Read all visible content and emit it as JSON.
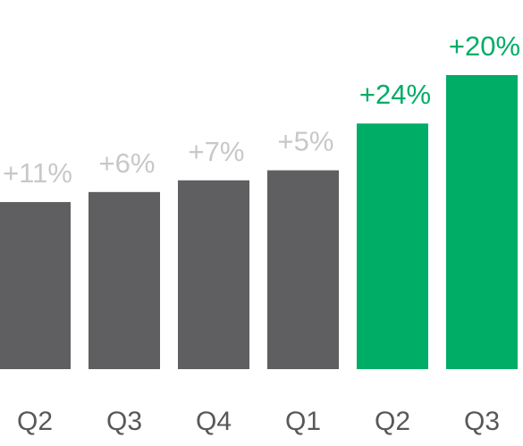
{
  "chart_data": {
    "type": "bar",
    "categories": [
      "Q2",
      "Q3",
      "Q4",
      "Q1",
      "Q2",
      "Q3"
    ],
    "values": [
      100,
      106,
      113,
      119,
      147,
      176
    ],
    "labels": [
      "+11%",
      "+6%",
      "+7%",
      "+5%",
      "+24%",
      "+20%"
    ],
    "highlight": [
      false,
      false,
      false,
      false,
      true,
      true
    ],
    "colors": {
      "bar": "#5f5e60",
      "highlight_bar": "#00ad67",
      "label": "#c8c8c8",
      "highlight_label": "#00ad67"
    },
    "title": "",
    "xlabel": "",
    "ylabel": "",
    "ylim": [
      0,
      176
    ],
    "grid": false,
    "legend": "none"
  }
}
